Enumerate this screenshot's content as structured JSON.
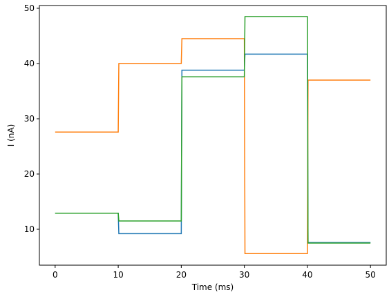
{
  "chart_data": {
    "type": "line",
    "xlabel": "Time (ms)",
    "ylabel": "I (nA)",
    "xlim": [
      -2.5,
      52.5
    ],
    "ylim": [
      3.5,
      50.5
    ],
    "xticks": [
      0,
      10,
      20,
      30,
      40,
      50
    ],
    "yticks": [
      10,
      20,
      30,
      40,
      50
    ],
    "grid": false,
    "series": [
      {
        "color": "#1f77b4",
        "x": [
          0,
          10,
          10.1,
          20,
          20.1,
          30,
          30.1,
          40,
          40.1,
          50
        ],
        "y": [
          12.9,
          12.9,
          9.2,
          9.2,
          38.8,
          38.8,
          41.7,
          41.7,
          7.6,
          7.6
        ]
      },
      {
        "color": "#ff7f0e",
        "x": [
          0,
          10,
          10.1,
          20,
          20.1,
          30,
          30.1,
          40,
          40.1,
          50
        ],
        "y": [
          27.6,
          27.6,
          40.0,
          40.0,
          44.5,
          44.5,
          5.6,
          5.6,
          37.0,
          37.0
        ]
      },
      {
        "color": "#2ca02c",
        "x": [
          0,
          10,
          10.1,
          20,
          20.1,
          30,
          30.1,
          40,
          40.1,
          50
        ],
        "y": [
          12.9,
          12.9,
          11.5,
          11.5,
          37.6,
          37.6,
          48.5,
          48.5,
          7.5,
          7.5
        ]
      }
    ]
  }
}
